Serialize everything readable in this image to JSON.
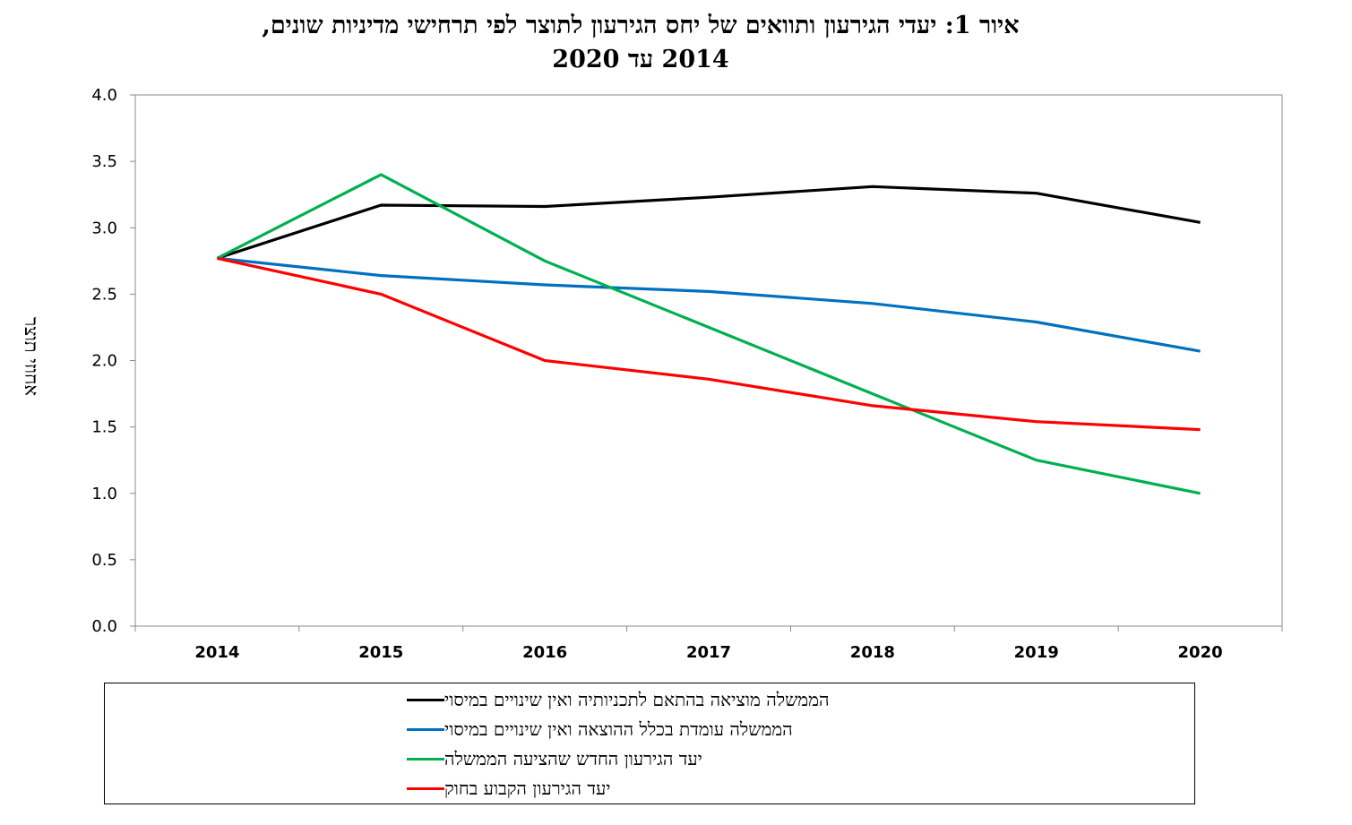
{
  "title": {
    "line1": "איור 1: יעדי הגירעון ותוואים של יחס הגירעון לתוצר לפי תרחישי מדיניות שונים,",
    "line2": "2014 עד 2020"
  },
  "chart_data": {
    "type": "line",
    "title": "איור 1: יעדי הגירעון ותוואים של יחס הגירעון לתוצר לפי תרחישי מדיניות שונים, 2014 עד 2020",
    "xlabel": "",
    "ylabel": "אחוזי תוצר",
    "categories": [
      "2014",
      "2015",
      "2016",
      "2017",
      "2018",
      "2019",
      "2020"
    ],
    "ylim": [
      0,
      4
    ],
    "yticks": [
      "0.0",
      "0.5",
      "1.0",
      "1.5",
      "2.0",
      "2.5",
      "3.0",
      "3.5",
      "4.0"
    ],
    "grid": false,
    "legend_position": "bottom",
    "series": [
      {
        "name": "הממשלה מוציאה בהתאם לתכניותיה ואין שינויים במיסוי",
        "color": "#000000",
        "values": [
          2.77,
          3.17,
          3.16,
          3.23,
          3.31,
          3.26,
          3.04
        ]
      },
      {
        "name": "הממשלה עומדת בכלל ההוצאה ואין שינויים במיסוי",
        "color": "#0070C0",
        "values": [
          2.77,
          2.64,
          2.57,
          2.52,
          2.43,
          2.29,
          2.07
        ]
      },
      {
        "name": "יעד הגירעון החדש שהציעה הממשלה",
        "color": "#00B050",
        "values": [
          2.77,
          3.4,
          2.75,
          2.25,
          1.75,
          1.25,
          1.0
        ]
      },
      {
        "name": "יעד הגירעון הקבוע בחוק",
        "color": "#FF0000",
        "values": [
          2.77,
          2.5,
          2.0,
          1.86,
          1.66,
          1.54,
          1.48
        ]
      }
    ]
  }
}
